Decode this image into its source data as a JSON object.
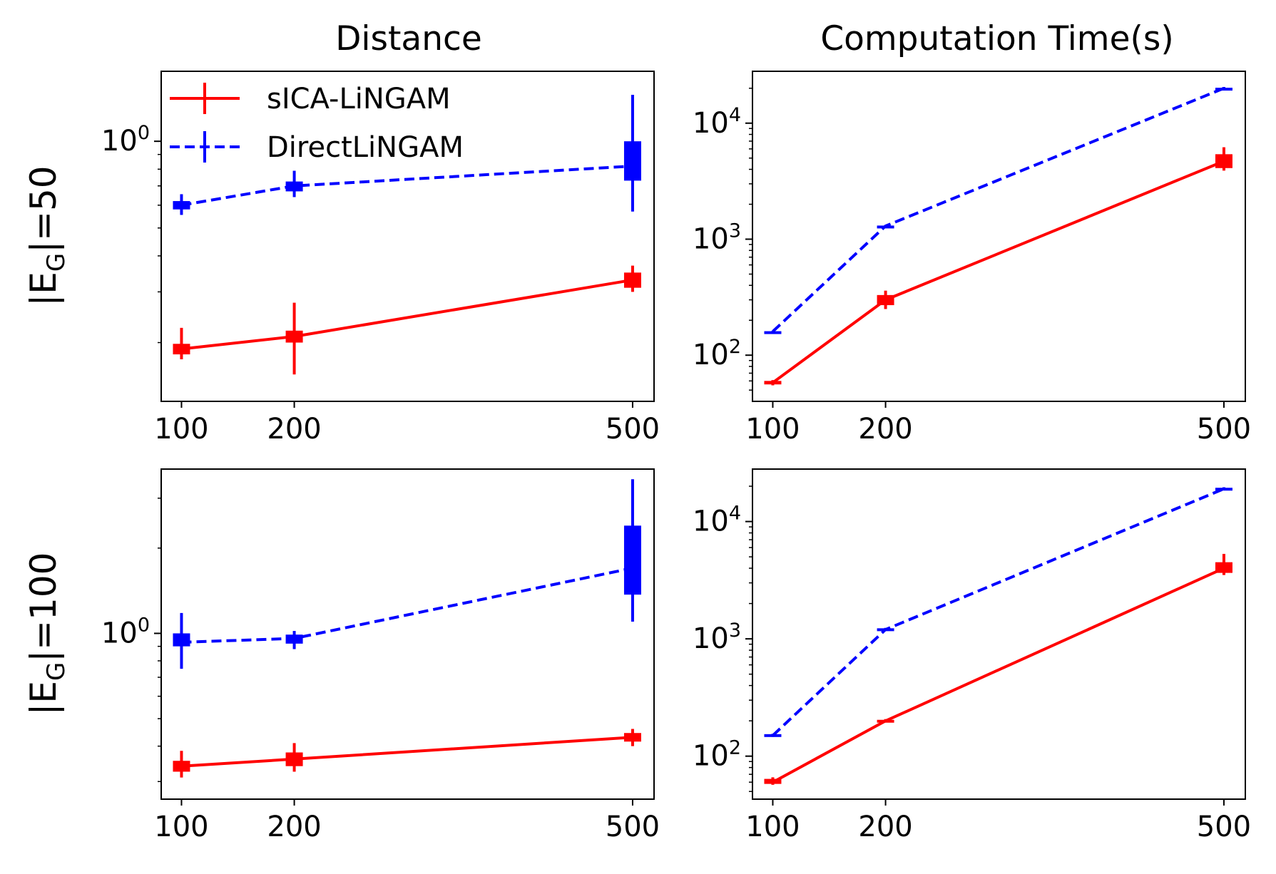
{
  "figure": {
    "col_titles": [
      "Distance",
      "Computation Time(s)"
    ],
    "row_labels": [
      {
        "prefix": "|E",
        "sub": "G",
        "suffix": "|=50"
      },
      {
        "prefix": "|E",
        "sub": "G",
        "suffix": "|=100"
      }
    ]
  },
  "legend": {
    "location": "upper-left",
    "entries": [
      {
        "name": "sICA-LiNGAM",
        "color": "#ff0000",
        "dash": "solid"
      },
      {
        "name": "DirectLiNGAM",
        "color": "#0000ff",
        "dash": "dashed"
      }
    ]
  },
  "chart_data": [
    {
      "id": "distance_E50",
      "type": "line",
      "title": "Distance",
      "row_label": "|E_G|=50",
      "xscale": "linear",
      "yscale": "log",
      "x": [
        100,
        200,
        500
      ],
      "xticks": [
        "100",
        "200",
        "500"
      ],
      "xlim": [
        82,
        519
      ],
      "ylim": [
        0.125,
        1.75
      ],
      "yticks": [
        {
          "value": 1.0,
          "base": "10",
          "exp": "0"
        }
      ],
      "series": [
        {
          "name": "sICA-LiNGAM",
          "color": "#ff0000",
          "dash": "solid",
          "values": [
            0.19,
            0.21,
            0.33
          ],
          "err_low": [
            0.175,
            0.155,
            0.3
          ],
          "err_high": [
            0.225,
            0.275,
            0.37
          ],
          "box_low": [
            0.182,
            0.2,
            0.31
          ],
          "box_high": [
            0.198,
            0.22,
            0.35
          ]
        },
        {
          "name": "DirectLiNGAM",
          "color": "#0000ff",
          "dash": "dashed",
          "values": [
            0.6,
            0.7,
            0.82
          ],
          "err_low": [
            0.555,
            0.64,
            0.57
          ],
          "err_high": [
            0.655,
            0.79,
            1.45
          ],
          "box_low": [
            0.58,
            0.67,
            0.73
          ],
          "box_high": [
            0.62,
            0.725,
            1.0
          ]
        }
      ]
    },
    {
      "id": "time_E50",
      "type": "line",
      "title": "Computation Time(s)",
      "row_label": "|E_G|=50",
      "xscale": "linear",
      "yscale": "log",
      "x": [
        100,
        200,
        500
      ],
      "xticks": [
        "100",
        "200",
        "500"
      ],
      "xlim": [
        82,
        519
      ],
      "ylim": [
        40,
        28000
      ],
      "yticks": [
        {
          "value": 100,
          "base": "10",
          "exp": "2"
        },
        {
          "value": 1000,
          "base": "10",
          "exp": "3"
        },
        {
          "value": 10000,
          "base": "10",
          "exp": "4"
        }
      ],
      "series": [
        {
          "name": "sICA-LiNGAM",
          "color": "#ff0000",
          "dash": "solid",
          "values": [
            58,
            300,
            4700
          ],
          "err_low": [
            55,
            250,
            3900
          ],
          "err_high": [
            61,
            360,
            6200
          ],
          "box_low": [
            56,
            270,
            4100
          ],
          "box_high": [
            60,
            330,
            5400
          ]
        },
        {
          "name": "DirectLiNGAM",
          "color": "#0000ff",
          "dash": "dashed",
          "values": [
            160,
            1300,
            20000
          ],
          "err_low": [
            158,
            1280,
            19500
          ],
          "err_high": [
            162,
            1320,
            20500
          ],
          "box_low": [
            159,
            1290,
            19800
          ],
          "box_high": [
            161,
            1310,
            20200
          ]
        }
      ]
    },
    {
      "id": "distance_E100",
      "type": "line",
      "title": "",
      "row_label": "|E_G|=100",
      "xscale": "linear",
      "yscale": "log",
      "x": [
        100,
        200,
        500
      ],
      "xticks": [
        "100",
        "200",
        "500"
      ],
      "xlim": [
        82,
        519
      ],
      "ylim": [
        0.26,
        3.8
      ],
      "yticks": [
        {
          "value": 1.0,
          "base": "10",
          "exp": "0"
        }
      ],
      "series": [
        {
          "name": "sICA-LiNGAM",
          "color": "#ff0000",
          "dash": "solid",
          "values": [
            0.34,
            0.36,
            0.43
          ],
          "err_low": [
            0.31,
            0.325,
            0.4
          ],
          "err_high": [
            0.385,
            0.41,
            0.46
          ],
          "box_low": [
            0.325,
            0.34,
            0.415
          ],
          "box_high": [
            0.355,
            0.38,
            0.445
          ]
        },
        {
          "name": "DirectLiNGAM",
          "color": "#0000ff",
          "dash": "dashed",
          "values": [
            0.93,
            0.96,
            1.7
          ],
          "err_low": [
            0.75,
            0.88,
            1.1
          ],
          "err_high": [
            1.18,
            1.02,
            3.5
          ],
          "box_low": [
            0.9,
            0.92,
            1.37
          ],
          "box_high": [
            1.0,
            0.99,
            2.4
          ]
        }
      ]
    },
    {
      "id": "time_E100",
      "type": "line",
      "title": "",
      "row_label": "|E_G|=100",
      "xscale": "linear",
      "yscale": "log",
      "x": [
        100,
        200,
        500
      ],
      "xticks": [
        "100",
        "200",
        "500"
      ],
      "xlim": [
        82,
        519
      ],
      "ylim": [
        43,
        28000
      ],
      "yticks": [
        {
          "value": 100,
          "base": "10",
          "exp": "2"
        },
        {
          "value": 1000,
          "base": "10",
          "exp": "3"
        },
        {
          "value": 10000,
          "base": "10",
          "exp": "4"
        }
      ],
      "series": [
        {
          "name": "sICA-LiNGAM",
          "color": "#ff0000",
          "dash": "solid",
          "values": [
            60,
            200,
            4000
          ],
          "err_low": [
            57,
            195,
            3500
          ],
          "err_high": [
            66,
            207,
            5300
          ],
          "box_low": [
            58,
            197,
            3650
          ],
          "box_high": [
            64,
            204,
            4500
          ]
        },
        {
          "name": "DirectLiNGAM",
          "color": "#0000ff",
          "dash": "dashed",
          "values": [
            150,
            1200,
            19000
          ],
          "err_low": [
            146,
            1170,
            18500
          ],
          "err_high": [
            155,
            1240,
            19600
          ],
          "box_low": [
            147,
            1180,
            18700
          ],
          "box_high": [
            154,
            1230,
            19400
          ]
        }
      ]
    }
  ]
}
